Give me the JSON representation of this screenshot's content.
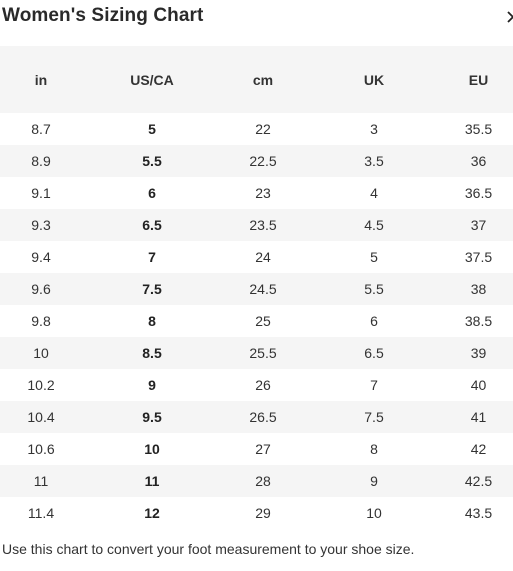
{
  "modal": {
    "title": "Women's Sizing Chart",
    "close_icon": "close-icon",
    "footnote": "Use this chart to convert your foot measurement to your shoe size."
  },
  "table": {
    "headers": [
      "in",
      "US/CA",
      "cm",
      "UK",
      "EU"
    ],
    "rows": [
      [
        "8.7",
        "5",
        "22",
        "3",
        "35.5"
      ],
      [
        "8.9",
        "5.5",
        "22.5",
        "3.5",
        "36"
      ],
      [
        "9.1",
        "6",
        "23",
        "4",
        "36.5"
      ],
      [
        "9.3",
        "6.5",
        "23.5",
        "4.5",
        "37"
      ],
      [
        "9.4",
        "7",
        "24",
        "5",
        "37.5"
      ],
      [
        "9.6",
        "7.5",
        "24.5",
        "5.5",
        "38"
      ],
      [
        "9.8",
        "8",
        "25",
        "6",
        "38.5"
      ],
      [
        "10",
        "8.5",
        "25.5",
        "6.5",
        "39"
      ],
      [
        "10.2",
        "9",
        "26",
        "7",
        "40"
      ],
      [
        "10.4",
        "9.5",
        "26.5",
        "7.5",
        "41"
      ],
      [
        "10.6",
        "10",
        "27",
        "8",
        "42"
      ],
      [
        "11",
        "11",
        "28",
        "9",
        "42.5"
      ],
      [
        "11.4",
        "12",
        "29",
        "10",
        "43.5"
      ]
    ]
  },
  "colors": {
    "stripe": "#f5f5f5",
    "text": "#333333"
  }
}
